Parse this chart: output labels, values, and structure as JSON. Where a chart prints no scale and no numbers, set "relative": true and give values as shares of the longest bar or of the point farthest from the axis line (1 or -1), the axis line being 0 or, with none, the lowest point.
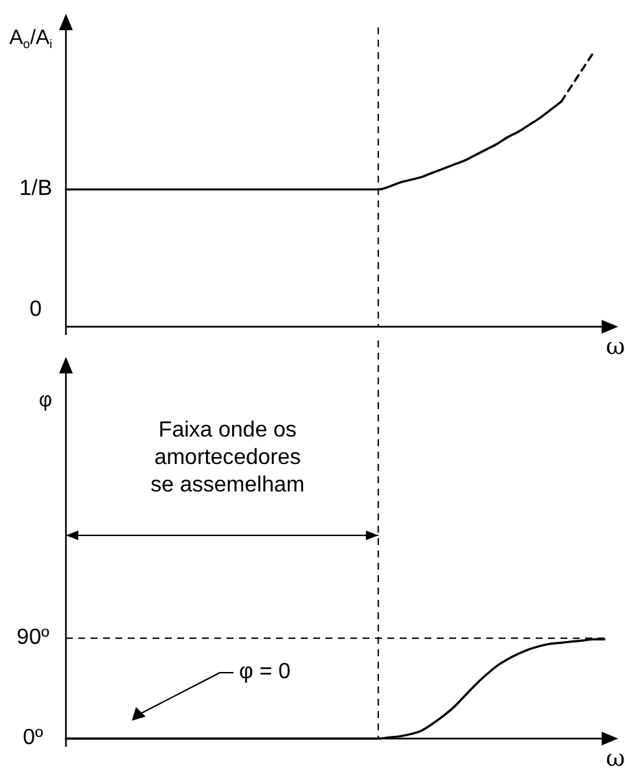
{
  "chart_data": [
    {
      "type": "line",
      "relative": true,
      "ylabel": "A$_{o}$/A$_{i}$",
      "xlabel": "ω",
      "marker": "none",
      "categories": [
        null,
        null,
        null,
        null,
        null,
        null,
        null,
        null,
        null,
        null,
        null,
        null,
        null,
        null,
        null,
        null,
        null,
        null,
        null,
        null,
        null,
        null,
        null,
        null,
        null,
        null,
        null,
        null,
        null,
        null,
        null,
        null,
        null,
        null,
        null,
        null,
        null,
        null,
        null,
        null,
        null,
        null,
        null,
        null,
        null,
        null,
        null,
        null,
        null,
        null,
        null
      ],
      "series": [
        {
          "color": "#000000",
          "line_style": "solid",
          "values": [
            0.5,
            0.5,
            0.5,
            0.5,
            0.5,
            0.5,
            0.5,
            0.5,
            0.5,
            0.5,
            0.5,
            0.5,
            0.5,
            0.5,
            0.5,
            0.5,
            0.5,
            0.5,
            0.5,
            0.5,
            0.5,
            0.5,
            0.5,
            0.5,
            0.5,
            0.5,
            0.5,
            0.5,
            0.5,
            0.5,
            0.51,
            0.525,
            0.535,
            0.545,
            0.56,
            0.575,
            0.59,
            0.605,
            0.625,
            0.645,
            0.665,
            0.69,
            0.71,
            0.735,
            0.76,
            0.79,
            0.82,
            null,
            null,
            null,
            null
          ]
        },
        {
          "color": "#000000",
          "line_style": "dashed",
          "values": [
            null,
            null,
            null,
            null,
            null,
            null,
            null,
            null,
            null,
            null,
            null,
            null,
            null,
            null,
            null,
            null,
            null,
            null,
            null,
            null,
            null,
            null,
            null,
            null,
            null,
            null,
            null,
            null,
            null,
            null,
            null,
            null,
            null,
            null,
            null,
            null,
            null,
            null,
            null,
            null,
            null,
            null,
            null,
            null,
            null,
            null,
            0.82,
            0.88,
            0.94,
            1.0,
            null
          ]
        }
      ],
      "annotations": [
        "1/B",
        "0"
      ]
    },
    {
      "type": "line",
      "ylabel": "φ",
      "xlabel": "ω",
      "marker": "none",
      "ylim": [
        0,
        330
      ],
      "yticks": [
        {
          "value": 0,
          "label": "0º"
        },
        {
          "value": 90,
          "label": "90º"
        }
      ],
      "categories": [
        null,
        null,
        null,
        null,
        null,
        null,
        null,
        null,
        null,
        null,
        null,
        null,
        null,
        null,
        null,
        null,
        null,
        null,
        null,
        null,
        null,
        null,
        null,
        null,
        null,
        null,
        null,
        null,
        null,
        null,
        null,
        null,
        null,
        null,
        null,
        null,
        null,
        null,
        null,
        null,
        null,
        null,
        null,
        null,
        null,
        null,
        null,
        null,
        null,
        null,
        null
      ],
      "series": [
        {
          "color": "#000000",
          "line_style": "solid",
          "values": [
            0,
            0,
            0,
            0,
            0,
            0,
            0,
            0,
            0,
            0,
            0,
            0,
            0,
            0,
            0,
            0,
            0,
            0,
            0,
            0,
            0,
            0,
            0,
            0,
            0,
            0,
            0,
            0,
            0,
            0,
            1,
            2,
            4,
            7,
            13,
            20,
            28,
            38,
            48,
            57,
            65,
            71,
            76,
            80,
            83,
            85,
            86,
            87,
            88,
            89,
            89
          ]
        }
      ],
      "ref_lines": [
        {
          "axis": "y",
          "value": 90,
          "line_style": "dashed",
          "color": "#000000"
        }
      ],
      "annotations": [
        "Faixa onde os\namortecedores\nse assemelham",
        "φ = 0"
      ]
    }
  ]
}
